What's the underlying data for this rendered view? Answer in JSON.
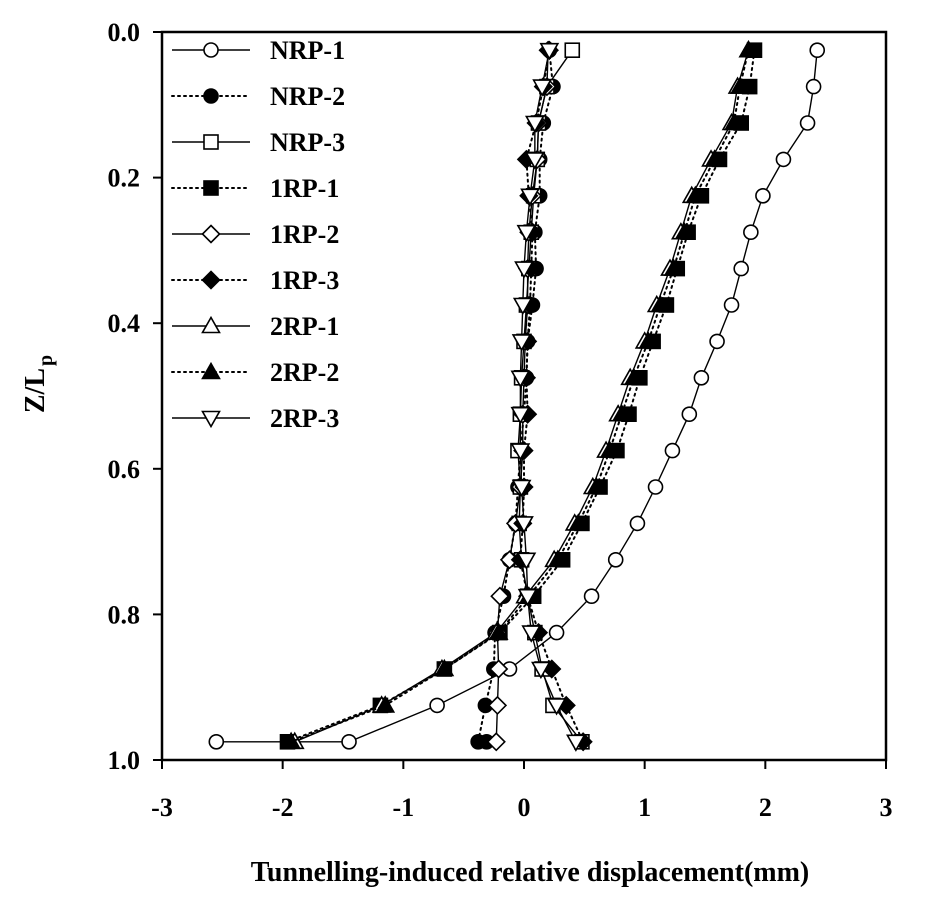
{
  "chart_data": {
    "type": "line",
    "title": "",
    "xlabel": "Tunnelling-induced relative displacement(mm)",
    "ylabel_main": "Z/L",
    "ylabel_sub": "p",
    "xlim": [
      -3,
      3
    ],
    "ylim": [
      0,
      1
    ],
    "y_inverted": true,
    "x_ticks": [
      -3,
      -2,
      -1,
      0,
      1,
      2,
      3
    ],
    "y_ticks": [
      0.0,
      0.2,
      0.4,
      0.6,
      0.8,
      1.0
    ],
    "x_tick_labels": [
      "-3",
      "-2",
      "-1",
      "0",
      "1",
      "2",
      "3"
    ],
    "y_tick_labels": [
      "0.0",
      "0.2",
      "0.4",
      "0.6",
      "0.8",
      "1.0"
    ],
    "grid": false,
    "legend_position": "top-left",
    "series": [
      {
        "name": "NRP-1",
        "line": "solid",
        "marker": "circle",
        "fill": "open",
        "x": [
          2.43,
          2.4,
          2.35,
          2.15,
          1.98,
          1.88,
          1.8,
          1.72,
          1.6,
          1.47,
          1.37,
          1.23,
          1.09,
          0.94,
          0.76,
          0.56,
          0.27,
          -0.12,
          -0.72,
          -1.45,
          -2.55
        ],
        "y": [
          0.025,
          0.075,
          0.125,
          0.175,
          0.225,
          0.275,
          0.325,
          0.375,
          0.425,
          0.475,
          0.525,
          0.575,
          0.625,
          0.675,
          0.725,
          0.775,
          0.825,
          0.875,
          0.925,
          0.975,
          0.975
        ]
      },
      {
        "name": "NRP-2",
        "line": "dotted",
        "marker": "circle",
        "fill": "filled",
        "x": [
          0.21,
          0.24,
          0.16,
          0.13,
          0.13,
          0.09,
          0.1,
          0.07,
          0.03,
          0.02,
          0.0,
          -0.03,
          -0.05,
          -0.07,
          -0.12,
          -0.17,
          -0.24,
          -0.25,
          -0.32,
          -0.38,
          -0.31
        ],
        "y": [
          0.025,
          0.075,
          0.125,
          0.175,
          0.225,
          0.275,
          0.325,
          0.375,
          0.425,
          0.475,
          0.525,
          0.575,
          0.625,
          0.675,
          0.725,
          0.775,
          0.825,
          0.875,
          0.925,
          0.975,
          0.975
        ]
      },
      {
        "name": "NRP-3",
        "line": "solid",
        "marker": "square",
        "fill": "open",
        "x": [
          0.4,
          0.19,
          0.12,
          0.11,
          0.08,
          0.06,
          0.04,
          0.02,
          0.0,
          -0.02,
          -0.03,
          -0.05,
          -0.03,
          -0.04,
          -0.02,
          0.03,
          0.09,
          0.15,
          0.24,
          0.48
        ],
        "y": [
          0.025,
          0.075,
          0.125,
          0.175,
          0.225,
          0.275,
          0.325,
          0.375,
          0.425,
          0.475,
          0.525,
          0.575,
          0.625,
          0.675,
          0.725,
          0.775,
          0.825,
          0.875,
          0.925,
          0.975
        ]
      },
      {
        "name": "1RP-1",
        "line": "dotted",
        "marker": "square",
        "fill": "filled",
        "x": [
          1.91,
          1.87,
          1.8,
          1.62,
          1.47,
          1.36,
          1.27,
          1.18,
          1.07,
          0.96,
          0.87,
          0.77,
          0.63,
          0.48,
          0.32,
          0.08,
          -0.2,
          -0.66,
          -1.19,
          -1.96
        ],
        "y": [
          0.025,
          0.075,
          0.125,
          0.175,
          0.225,
          0.275,
          0.325,
          0.375,
          0.425,
          0.475,
          0.525,
          0.575,
          0.625,
          0.675,
          0.725,
          0.775,
          0.825,
          0.875,
          0.925,
          0.975
        ]
      },
      {
        "name": "1RP-2",
        "line": "solid",
        "marker": "diamond",
        "fill": "open",
        "x": [
          0.2,
          0.19,
          0.12,
          0.11,
          0.07,
          0.04,
          0.03,
          0.03,
          0.01,
          0.0,
          -0.01,
          -0.01,
          -0.03,
          -0.07,
          -0.12,
          -0.2,
          -0.22,
          -0.21,
          -0.22,
          -0.23
        ],
        "y": [
          0.025,
          0.075,
          0.125,
          0.175,
          0.225,
          0.275,
          0.325,
          0.375,
          0.425,
          0.475,
          0.525,
          0.575,
          0.625,
          0.675,
          0.725,
          0.775,
          0.825,
          0.875,
          0.925,
          0.975
        ]
      },
      {
        "name": "1RP-3",
        "line": "dotted",
        "marker": "diamond",
        "fill": "filled",
        "x": [
          0.21,
          0.16,
          0.1,
          0.02,
          0.04,
          0.07,
          0.06,
          0.05,
          0.03,
          0.02,
          0.03,
          0.0,
          0.0,
          -0.01,
          -0.03,
          0.03,
          0.12,
          0.23,
          0.35,
          0.49
        ],
        "y": [
          0.025,
          0.075,
          0.125,
          0.175,
          0.225,
          0.275,
          0.325,
          0.375,
          0.425,
          0.475,
          0.525,
          0.575,
          0.625,
          0.675,
          0.725,
          0.775,
          0.825,
          0.875,
          0.925,
          0.975
        ]
      },
      {
        "name": "2RP-1",
        "line": "solid",
        "marker": "triangle-up",
        "fill": "open",
        "x": [
          1.86,
          1.77,
          1.72,
          1.55,
          1.39,
          1.3,
          1.21,
          1.1,
          1.0,
          0.88,
          0.78,
          0.68,
          0.57,
          0.42,
          0.25,
          0.01,
          -0.23,
          -0.68,
          -1.18,
          -1.9
        ],
        "y": [
          0.025,
          0.075,
          0.125,
          0.175,
          0.225,
          0.275,
          0.325,
          0.375,
          0.425,
          0.475,
          0.525,
          0.575,
          0.625,
          0.675,
          0.725,
          0.775,
          0.825,
          0.875,
          0.925,
          0.975
        ]
      },
      {
        "name": "2RP-2",
        "line": "dotted",
        "marker": "triangle-up",
        "fill": "filled",
        "x": [
          1.86,
          1.79,
          1.74,
          1.58,
          1.42,
          1.33,
          1.24,
          1.13,
          1.03,
          0.91,
          0.81,
          0.71,
          0.6,
          0.45,
          0.28,
          0.04,
          -0.21,
          -0.66,
          -1.15,
          -1.93
        ],
        "y": [
          0.025,
          0.075,
          0.125,
          0.175,
          0.225,
          0.275,
          0.325,
          0.375,
          0.425,
          0.475,
          0.525,
          0.575,
          0.625,
          0.675,
          0.725,
          0.775,
          0.825,
          0.875,
          0.925,
          0.975
        ]
      },
      {
        "name": "2RP-3",
        "line": "solid",
        "marker": "triangle-down",
        "fill": "open",
        "x": [
          0.21,
          0.15,
          0.09,
          0.09,
          0.05,
          0.02,
          0.0,
          -0.01,
          -0.02,
          -0.03,
          -0.03,
          -0.03,
          -0.02,
          0.0,
          0.02,
          0.03,
          0.06,
          0.14,
          0.27,
          0.43
        ],
        "y": [
          0.025,
          0.075,
          0.125,
          0.175,
          0.225,
          0.275,
          0.325,
          0.375,
          0.425,
          0.475,
          0.525,
          0.575,
          0.625,
          0.675,
          0.725,
          0.775,
          0.825,
          0.875,
          0.925,
          0.975
        ]
      }
    ]
  }
}
